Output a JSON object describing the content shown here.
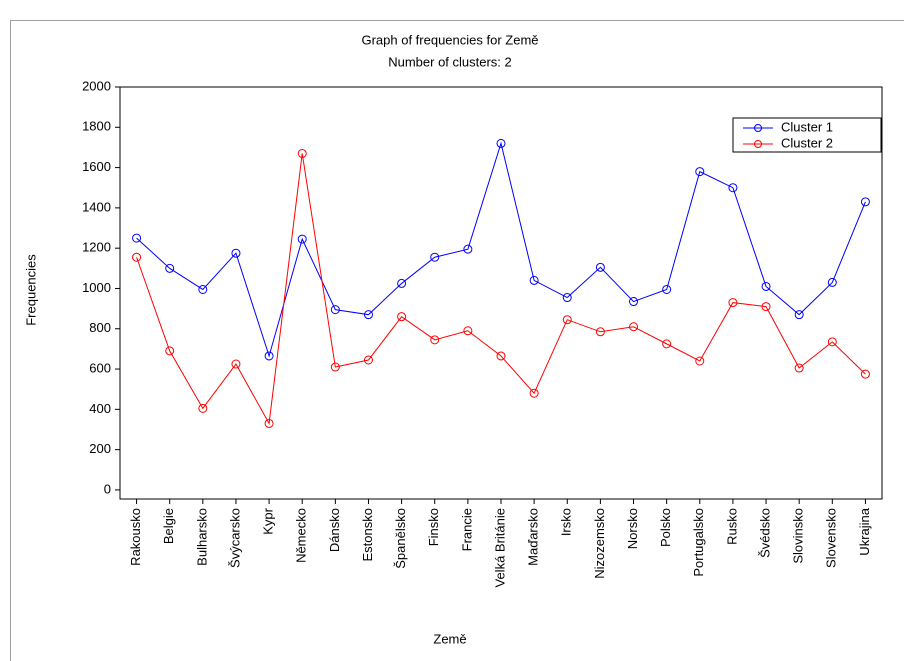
{
  "chart_data": {
    "type": "line",
    "title": "Graph of frequencies for Země",
    "subtitle": "Number of clusters: 2",
    "x_label": "Země",
    "y_label": "Frequencies",
    "categories": [
      "Rakousko",
      "Belgie",
      "Bulharsko",
      "Švýcarsko",
      "Kypr",
      "Německo",
      "Dánsko",
      "Estonsko",
      "Španělsko",
      "Finsko",
      "Francie",
      "Velká Británie",
      "Maďarsko",
      "Irsko",
      "Nizozemsko",
      "Norsko",
      "Polsko",
      "Portugalsko",
      "Rusko",
      "Švédsko",
      "Slovinsko",
      "Slovensko",
      "Ukrajina"
    ],
    "series": [
      {
        "name": "Cluster 1",
        "color": "#0000ff",
        "values": [
          1250,
          1100,
          995,
          1175,
          665,
          1245,
          895,
          870,
          1025,
          1155,
          1195,
          1720,
          1040,
          955,
          1105,
          935,
          995,
          1580,
          1500,
          1010,
          870,
          1030,
          1430
        ]
      },
      {
        "name": "Cluster 2",
        "color": "#ff0000",
        "values": [
          1155,
          690,
          405,
          625,
          330,
          1670,
          610,
          645,
          860,
          745,
          790,
          665,
          480,
          845,
          785,
          810,
          725,
          640,
          930,
          910,
          605,
          735,
          575
        ]
      }
    ],
    "ylim": [
      -45,
      2000
    ],
    "yticks": [
      0,
      200,
      400,
      600,
      800,
      1000,
      1200,
      1400,
      1600,
      1800,
      2000
    ],
    "legend": "upper right"
  }
}
